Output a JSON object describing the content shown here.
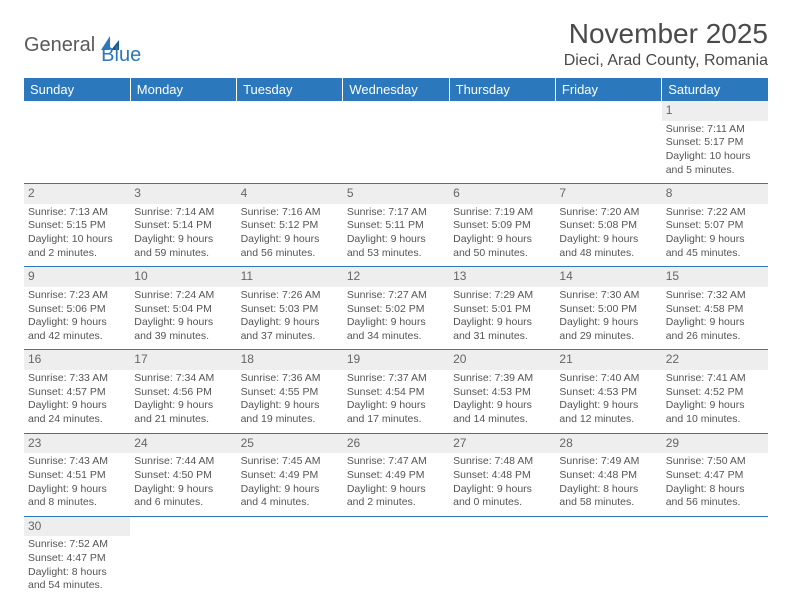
{
  "logo": {
    "part1": "General",
    "part2": "Blue"
  },
  "title": "November 2025",
  "location": "Dieci, Arad County, Romania",
  "colors": {
    "header_bg": "#2b78bc",
    "header_fg": "#ffffff",
    "daynum_bg": "#eeeeee",
    "border": "#2b78bc",
    "text": "#555555",
    "title_text": "#4a4a4a"
  },
  "weekdays": [
    "Sunday",
    "Monday",
    "Tuesday",
    "Wednesday",
    "Thursday",
    "Friday",
    "Saturday"
  ],
  "weeks": [
    [
      null,
      null,
      null,
      null,
      null,
      null,
      {
        "n": "1",
        "sr": "Sunrise: 7:11 AM",
        "ss": "Sunset: 5:17 PM",
        "d1": "Daylight: 10 hours",
        "d2": "and 5 minutes."
      }
    ],
    [
      {
        "n": "2",
        "sr": "Sunrise: 7:13 AM",
        "ss": "Sunset: 5:15 PM",
        "d1": "Daylight: 10 hours",
        "d2": "and 2 minutes."
      },
      {
        "n": "3",
        "sr": "Sunrise: 7:14 AM",
        "ss": "Sunset: 5:14 PM",
        "d1": "Daylight: 9 hours",
        "d2": "and 59 minutes."
      },
      {
        "n": "4",
        "sr": "Sunrise: 7:16 AM",
        "ss": "Sunset: 5:12 PM",
        "d1": "Daylight: 9 hours",
        "d2": "and 56 minutes."
      },
      {
        "n": "5",
        "sr": "Sunrise: 7:17 AM",
        "ss": "Sunset: 5:11 PM",
        "d1": "Daylight: 9 hours",
        "d2": "and 53 minutes."
      },
      {
        "n": "6",
        "sr": "Sunrise: 7:19 AM",
        "ss": "Sunset: 5:09 PM",
        "d1": "Daylight: 9 hours",
        "d2": "and 50 minutes."
      },
      {
        "n": "7",
        "sr": "Sunrise: 7:20 AM",
        "ss": "Sunset: 5:08 PM",
        "d1": "Daylight: 9 hours",
        "d2": "and 48 minutes."
      },
      {
        "n": "8",
        "sr": "Sunrise: 7:22 AM",
        "ss": "Sunset: 5:07 PM",
        "d1": "Daylight: 9 hours",
        "d2": "and 45 minutes."
      }
    ],
    [
      {
        "n": "9",
        "sr": "Sunrise: 7:23 AM",
        "ss": "Sunset: 5:06 PM",
        "d1": "Daylight: 9 hours",
        "d2": "and 42 minutes."
      },
      {
        "n": "10",
        "sr": "Sunrise: 7:24 AM",
        "ss": "Sunset: 5:04 PM",
        "d1": "Daylight: 9 hours",
        "d2": "and 39 minutes."
      },
      {
        "n": "11",
        "sr": "Sunrise: 7:26 AM",
        "ss": "Sunset: 5:03 PM",
        "d1": "Daylight: 9 hours",
        "d2": "and 37 minutes."
      },
      {
        "n": "12",
        "sr": "Sunrise: 7:27 AM",
        "ss": "Sunset: 5:02 PM",
        "d1": "Daylight: 9 hours",
        "d2": "and 34 minutes."
      },
      {
        "n": "13",
        "sr": "Sunrise: 7:29 AM",
        "ss": "Sunset: 5:01 PM",
        "d1": "Daylight: 9 hours",
        "d2": "and 31 minutes."
      },
      {
        "n": "14",
        "sr": "Sunrise: 7:30 AM",
        "ss": "Sunset: 5:00 PM",
        "d1": "Daylight: 9 hours",
        "d2": "and 29 minutes."
      },
      {
        "n": "15",
        "sr": "Sunrise: 7:32 AM",
        "ss": "Sunset: 4:58 PM",
        "d1": "Daylight: 9 hours",
        "d2": "and 26 minutes."
      }
    ],
    [
      {
        "n": "16",
        "sr": "Sunrise: 7:33 AM",
        "ss": "Sunset: 4:57 PM",
        "d1": "Daylight: 9 hours",
        "d2": "and 24 minutes."
      },
      {
        "n": "17",
        "sr": "Sunrise: 7:34 AM",
        "ss": "Sunset: 4:56 PM",
        "d1": "Daylight: 9 hours",
        "d2": "and 21 minutes."
      },
      {
        "n": "18",
        "sr": "Sunrise: 7:36 AM",
        "ss": "Sunset: 4:55 PM",
        "d1": "Daylight: 9 hours",
        "d2": "and 19 minutes."
      },
      {
        "n": "19",
        "sr": "Sunrise: 7:37 AM",
        "ss": "Sunset: 4:54 PM",
        "d1": "Daylight: 9 hours",
        "d2": "and 17 minutes."
      },
      {
        "n": "20",
        "sr": "Sunrise: 7:39 AM",
        "ss": "Sunset: 4:53 PM",
        "d1": "Daylight: 9 hours",
        "d2": "and 14 minutes."
      },
      {
        "n": "21",
        "sr": "Sunrise: 7:40 AM",
        "ss": "Sunset: 4:53 PM",
        "d1": "Daylight: 9 hours",
        "d2": "and 12 minutes."
      },
      {
        "n": "22",
        "sr": "Sunrise: 7:41 AM",
        "ss": "Sunset: 4:52 PM",
        "d1": "Daylight: 9 hours",
        "d2": "and 10 minutes."
      }
    ],
    [
      {
        "n": "23",
        "sr": "Sunrise: 7:43 AM",
        "ss": "Sunset: 4:51 PM",
        "d1": "Daylight: 9 hours",
        "d2": "and 8 minutes."
      },
      {
        "n": "24",
        "sr": "Sunrise: 7:44 AM",
        "ss": "Sunset: 4:50 PM",
        "d1": "Daylight: 9 hours",
        "d2": "and 6 minutes."
      },
      {
        "n": "25",
        "sr": "Sunrise: 7:45 AM",
        "ss": "Sunset: 4:49 PM",
        "d1": "Daylight: 9 hours",
        "d2": "and 4 minutes."
      },
      {
        "n": "26",
        "sr": "Sunrise: 7:47 AM",
        "ss": "Sunset: 4:49 PM",
        "d1": "Daylight: 9 hours",
        "d2": "and 2 minutes."
      },
      {
        "n": "27",
        "sr": "Sunrise: 7:48 AM",
        "ss": "Sunset: 4:48 PM",
        "d1": "Daylight: 9 hours",
        "d2": "and 0 minutes."
      },
      {
        "n": "28",
        "sr": "Sunrise: 7:49 AM",
        "ss": "Sunset: 4:48 PM",
        "d1": "Daylight: 8 hours",
        "d2": "and 58 minutes."
      },
      {
        "n": "29",
        "sr": "Sunrise: 7:50 AM",
        "ss": "Sunset: 4:47 PM",
        "d1": "Daylight: 8 hours",
        "d2": "and 56 minutes."
      }
    ],
    [
      {
        "n": "30",
        "sr": "Sunrise: 7:52 AM",
        "ss": "Sunset: 4:47 PM",
        "d1": "Daylight: 8 hours",
        "d2": "and 54 minutes."
      },
      null,
      null,
      null,
      null,
      null,
      null
    ]
  ]
}
